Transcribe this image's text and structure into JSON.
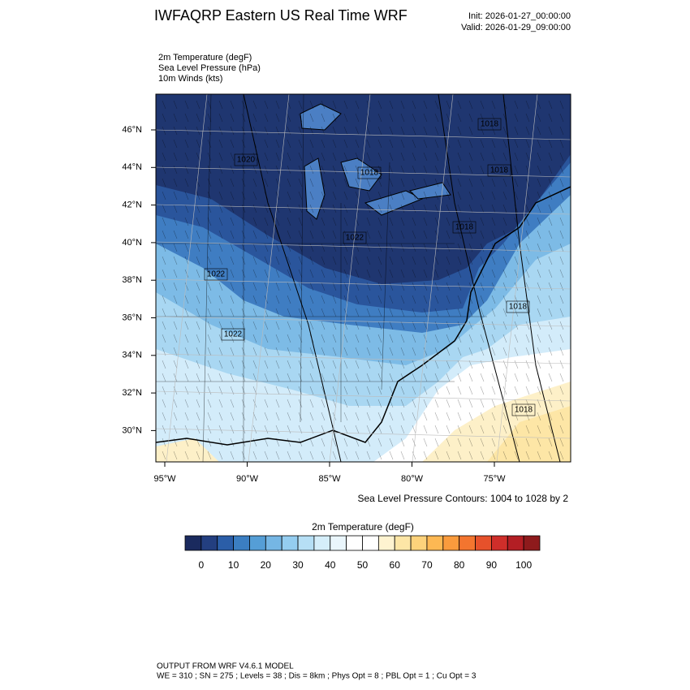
{
  "header": {
    "title": "IWFAQRP Eastern US Real Time WRF",
    "init": "Init: 2026-01-27_00:00:00",
    "valid": "Valid: 2026-01-29_09:00:00"
  },
  "fields": [
    "2m Temperature   (degF)",
    "Sea Level Pressure   (hPa)",
    "10m Winds   (kts)"
  ],
  "map": {
    "lat_labels": [
      "46°N",
      "44°N",
      "42°N",
      "40°N",
      "38°N",
      "36°N",
      "34°N",
      "32°N",
      "30°N"
    ],
    "lon_labels": [
      "95°W",
      "90°W",
      "85°W",
      "80°W",
      "75°W"
    ],
    "contour_labels": [
      "1018",
      "1020",
      "1018",
      "1018",
      "1018",
      "1022",
      "1022",
      "1022",
      "1018",
      "1018"
    ],
    "contour_note": "Sea Level Pressure Contours: 1004 to 1028 by 2"
  },
  "colorbar": {
    "title": "2m Temperature  (degF)",
    "ticks": [
      0,
      10,
      20,
      30,
      40,
      50,
      60,
      70,
      80,
      90,
      100
    ],
    "colors": [
      "#1a2a5e",
      "#233f80",
      "#2b5ea8",
      "#3b7ec2",
      "#559ed6",
      "#75b6e4",
      "#94cdf0",
      "#b6dff5",
      "#d5eefa",
      "#eaf6fc",
      "#ffffff",
      "#ffffff",
      "#fef3d0",
      "#fde6a6",
      "#fdd27b",
      "#fdb853",
      "#fa9b3d",
      "#f3752f",
      "#e6512b",
      "#cf2e2a",
      "#b31e24",
      "#8e1a1c"
    ]
  },
  "footer": {
    "line1": "OUTPUT FROM WRF V4.6.1 MODEL",
    "line2": "WE = 310 ; SN = 275 ; Levels = 38 ; Dis = 8km ; Phys Opt = 8 ; PBL Opt = 1 ; Cu Opt = 3"
  }
}
